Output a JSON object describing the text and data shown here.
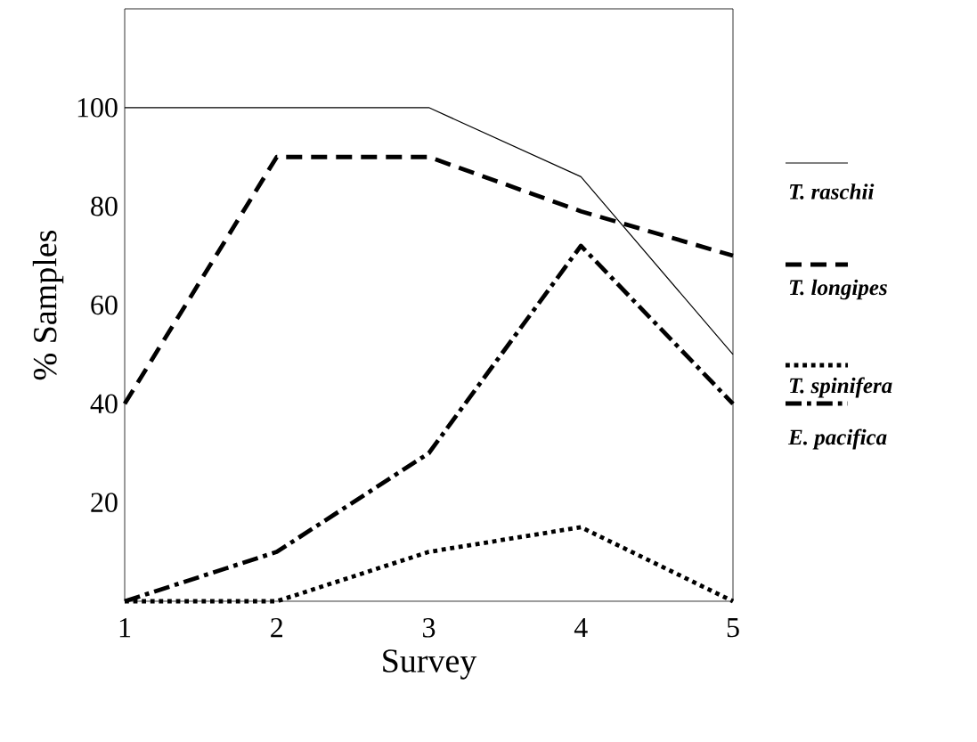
{
  "chart_data": {
    "type": "line",
    "xlabel": "Survey",
    "ylabel": "% Samples",
    "x": [
      1,
      2,
      3,
      4,
      5
    ],
    "xlim": [
      1,
      5
    ],
    "xticks": [
      1,
      2,
      3,
      4,
      5
    ],
    "ylim": [
      0,
      120
    ],
    "yticks": [
      20,
      40,
      60,
      80,
      100
    ],
    "legend": "right",
    "grid": false,
    "marker": "none",
    "series": [
      {
        "name": "T. raschii",
        "color": "#000000",
        "line_style": "solid",
        "values": [
          100,
          100,
          100,
          86,
          50
        ]
      },
      {
        "name": "T. longipes",
        "color": "#000000",
        "line_style": "dashed",
        "values": [
          40,
          90,
          90,
          79,
          70
        ]
      },
      {
        "name": "T. spinifera",
        "color": "#000000",
        "line_style": "dotted",
        "values": [
          0,
          0,
          10,
          15,
          0
        ]
      },
      {
        "name": "E. pacifica",
        "color": "#000000",
        "line_style": "dashdot",
        "values": [
          0,
          10,
          30,
          72,
          40
        ]
      }
    ]
  }
}
